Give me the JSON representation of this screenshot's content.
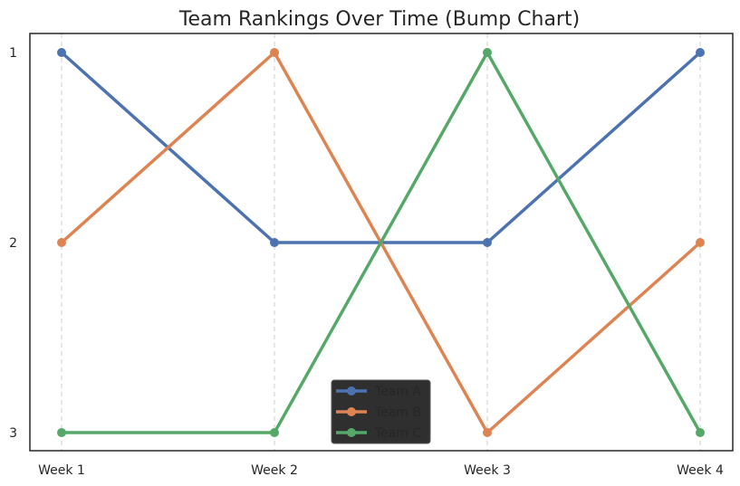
{
  "chart_data": {
    "type": "line",
    "title": "Team Rankings Over Time (Bump Chart)",
    "xlabel": "",
    "ylabel": "",
    "categories": [
      "Week 1",
      "Week 2",
      "Week 3",
      "Week 4"
    ],
    "y_ticks": [
      "1",
      "2",
      "3"
    ],
    "ylim": [
      3,
      1
    ],
    "y_inverted": true,
    "grid": {
      "x": true,
      "y": false,
      "style": "dashed"
    },
    "legend_placement": "bottom-center",
    "series": [
      {
        "name": "Team A",
        "color": "#4c72b0",
        "values": [
          1,
          2,
          2,
          1
        ]
      },
      {
        "name": "Team B",
        "color": "#dd8452",
        "values": [
          2,
          1,
          3,
          2
        ]
      },
      {
        "name": "Team C",
        "color": "#55a868",
        "values": [
          3,
          3,
          1,
          3
        ]
      }
    ]
  }
}
